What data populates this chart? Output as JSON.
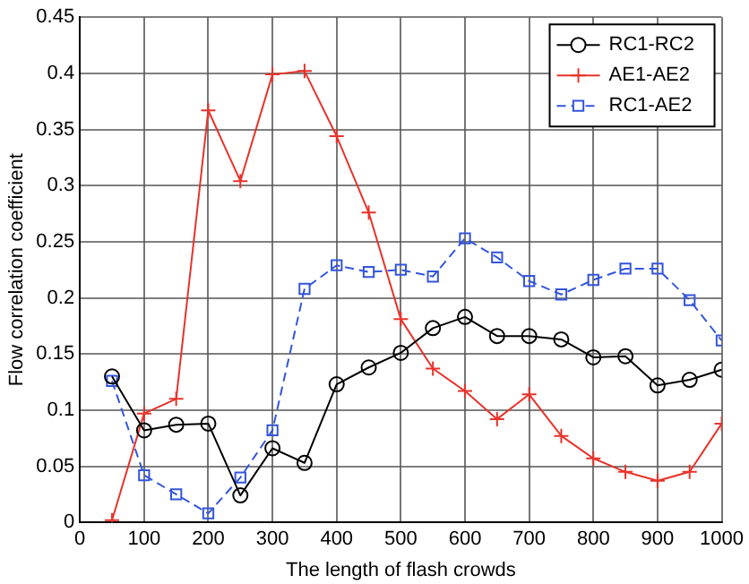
{
  "chart_data": {
    "type": "line",
    "xlabel": "The length of flash crowds",
    "ylabel": "Flow correlation coefficient",
    "x": [
      50,
      100,
      150,
      200,
      250,
      300,
      350,
      400,
      450,
      500,
      550,
      600,
      650,
      700,
      750,
      800,
      850,
      900,
      950,
      1000
    ],
    "series": [
      {
        "name": "RC1-RC2",
        "color": "#000000",
        "marker": "circle",
        "line_style": "solid",
        "values": [
          0.13,
          0.082,
          0.087,
          0.088,
          0.024,
          0.066,
          0.053,
          0.123,
          0.138,
          0.151,
          0.173,
          0.183,
          0.166,
          0.166,
          0.163,
          0.147,
          0.148,
          0.122,
          0.127,
          0.136
        ]
      },
      {
        "name": "AE1-AE2",
        "color": "#e8322a",
        "marker": "cross",
        "line_style": "solid",
        "values": [
          0.002,
          0.097,
          0.11,
          0.367,
          0.304,
          0.399,
          0.402,
          0.344,
          0.276,
          0.181,
          0.137,
          0.117,
          0.092,
          0.114,
          0.077,
          0.057,
          0.045,
          0.037,
          0.045,
          0.088
        ]
      },
      {
        "name": "RC1-AE2",
        "color": "#3355dd",
        "marker": "square",
        "line_style": "dashed",
        "values": [
          0.126,
          0.042,
          0.025,
          0.008,
          0.04,
          0.082,
          0.208,
          0.229,
          0.223,
          0.225,
          0.219,
          0.253,
          0.236,
          0.215,
          0.203,
          0.216,
          0.226,
          0.226,
          0.198,
          0.162
        ]
      }
    ],
    "xlim": [
      0,
      1000
    ],
    "xticks": [
      0,
      100,
      200,
      300,
      400,
      500,
      600,
      700,
      800,
      900,
      1000
    ],
    "ylim": [
      0,
      0.45
    ],
    "yticks": [
      0,
      0.05,
      0.1,
      0.15,
      0.2,
      0.25,
      0.3,
      0.35,
      0.4,
      0.45
    ],
    "grid": true,
    "legend": "top right"
  }
}
